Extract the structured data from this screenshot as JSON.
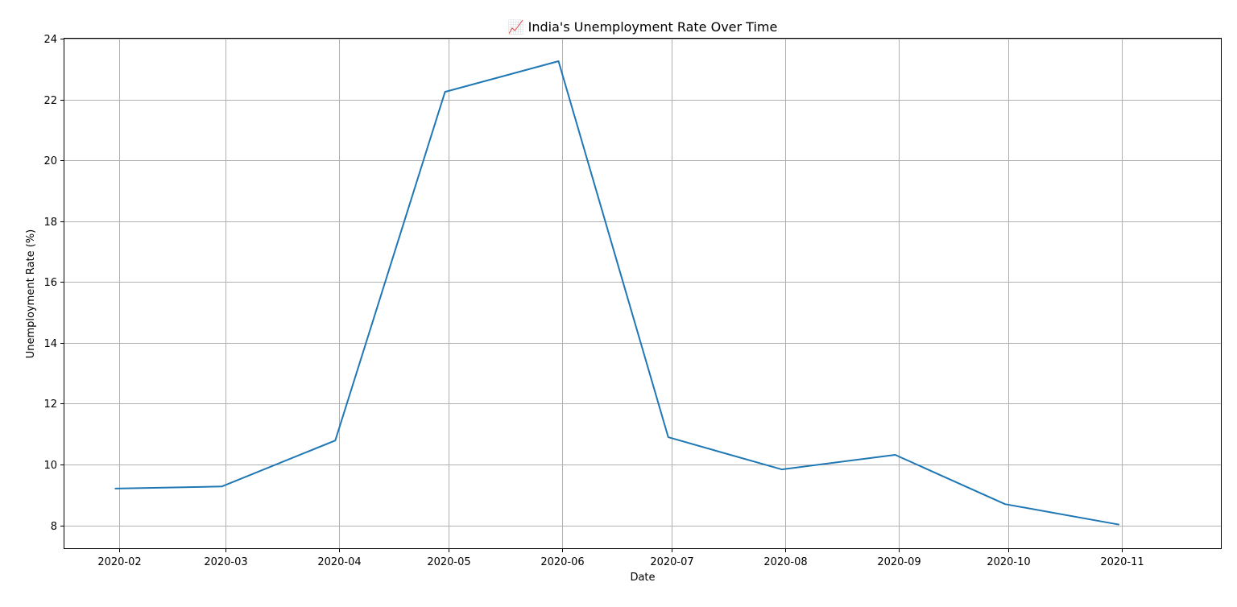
{
  "chart_data": {
    "type": "line",
    "title": "📈 India's Unemployment Rate Over Time",
    "xlabel": "Date",
    "ylabel": "Unemployment Rate (%)",
    "x_ticks": [
      "2020-02",
      "2020-03",
      "2020-04",
      "2020-05",
      "2020-06",
      "2020-07",
      "2020-08",
      "2020-09",
      "2020-10",
      "2020-11"
    ],
    "y_ticks": [
      8,
      10,
      12,
      14,
      16,
      18,
      20,
      22,
      24
    ],
    "ylim": [
      7.25,
      24
    ],
    "xlim": [
      "2020-01-17",
      "2020-11-28"
    ],
    "grid": true,
    "series": [
      {
        "color": "#1f77b4",
        "x": [
          "2020-01-31",
          "2020-02-29",
          "2020-03-31",
          "2020-04-30",
          "2020-05-31",
          "2020-06-30",
          "2020-07-31",
          "2020-08-31",
          "2020-09-30",
          "2020-10-31"
        ],
        "y": [
          9.21,
          9.28,
          10.79,
          22.25,
          23.26,
          10.9,
          9.84,
          10.32,
          8.7,
          8.03
        ]
      }
    ]
  }
}
